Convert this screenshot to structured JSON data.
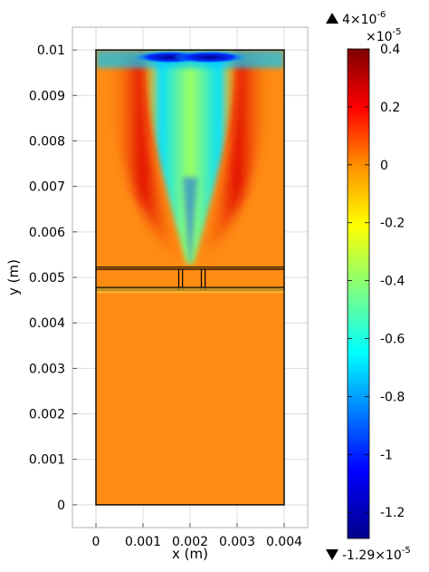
{
  "chart_data": {
    "type": "heatmap",
    "title": "",
    "xlabel": "x (m)",
    "ylabel": "y (m)",
    "xlim": [
      -0.0005,
      0.0045
    ],
    "ylim": [
      -0.0005,
      0.0105
    ],
    "domain_x": [
      0,
      0.004
    ],
    "domain_y": [
      0,
      0.01
    ],
    "x_ticks": [
      {
        "value": 0,
        "label": "0"
      },
      {
        "value": 0.001,
        "label": "0.001"
      },
      {
        "value": 0.002,
        "label": "0.002"
      },
      {
        "value": 0.003,
        "label": "0.003"
      },
      {
        "value": 0.004,
        "label": "0.004"
      }
    ],
    "y_ticks": [
      {
        "value": 0,
        "label": "0"
      },
      {
        "value": 0.001,
        "label": "0.001"
      },
      {
        "value": 0.002,
        "label": "0.002"
      },
      {
        "value": 0.003,
        "label": "0.003"
      },
      {
        "value": 0.004,
        "label": "0.004"
      },
      {
        "value": 0.005,
        "label": "0.005"
      },
      {
        "value": 0.006,
        "label": "0.006"
      },
      {
        "value": 0.007,
        "label": "0.007"
      },
      {
        "value": 0.008,
        "label": "0.008"
      },
      {
        "value": 0.009,
        "label": "0.009"
      },
      {
        "value": 0.01,
        "label": "0.01"
      }
    ],
    "grid": true,
    "colorbar": {
      "max_label": "4×10",
      "max_exp": "-6",
      "min_label": "-1.29×10",
      "min_exp": "-5",
      "scale_label": "×10",
      "scale_exp": "-5",
      "range": [
        -1.29,
        0.4
      ],
      "ticks": [
        {
          "value": 0.4,
          "label": "0.4"
        },
        {
          "value": 0.2,
          "label": "0.2"
        },
        {
          "value": 0,
          "label": "0"
        },
        {
          "value": -0.2,
          "label": "-0.2"
        },
        {
          "value": -0.4,
          "label": "-0.4"
        },
        {
          "value": -0.6,
          "label": "-0.6"
        },
        {
          "value": -0.8,
          "label": "-0.8"
        },
        {
          "value": -1,
          "label": "-1"
        },
        {
          "value": -1.2,
          "label": "-1.2"
        }
      ],
      "colormap": [
        "#7f0000",
        "#ff0000",
        "#ff8c00",
        "#ffff00",
        "#00ffff",
        "#0000ff",
        "#00008b"
      ],
      "colormap_name": "Rainbow"
    },
    "field_levels": {
      "background": 0,
      "focused_lobes": 0.3,
      "central_minimum": -0.45,
      "top_edge_minimum": -1.2
    },
    "layer_lines_y": [
      0.005225,
      0.00518,
      0.00477,
      0.00472
    ],
    "slit_lines_x": [
      0.00176,
      0.00184,
      0.00224,
      0.00232
    ]
  }
}
